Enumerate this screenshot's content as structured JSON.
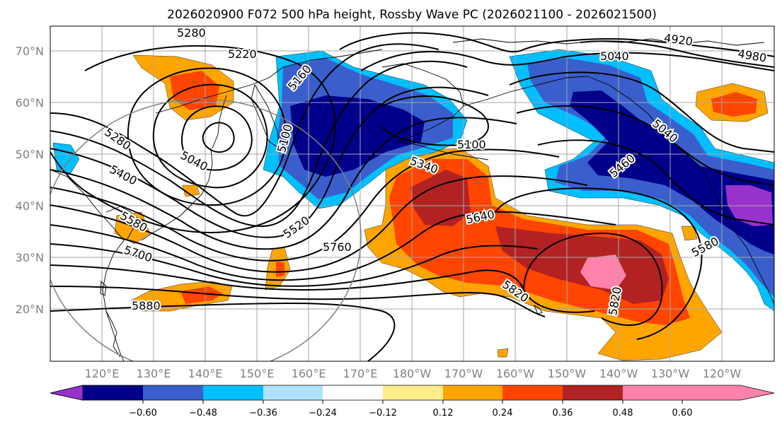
{
  "title": "2026020900 F072 500 hPa height, Rossby Wave PC (2026021100 - 2026021500)",
  "map": {
    "lat_ticks": [
      "70°N",
      "60°N",
      "50°N",
      "40°N",
      "30°N",
      "20°N"
    ],
    "lon_ticks": [
      "120°E",
      "130°E",
      "140°E",
      "150°E",
      "160°E",
      "170°E",
      "180°W",
      "170°W",
      "160°W",
      "150°W",
      "140°W",
      "130°W",
      "120°W"
    ],
    "contour_labels": [
      "5280",
      "5220",
      "5160",
      "5100",
      "5040",
      "5280",
      "5400",
      "5040",
      "5340",
      "5520",
      "5580",
      "5700",
      "5760",
      "5880",
      "5640",
      "5820",
      "5820",
      "5460",
      "5580",
      "5040",
      "4920",
      "4980",
      "5100"
    ]
  },
  "colorbar": {
    "tick_labels": [
      "−0.60",
      "−0.48",
      "−0.36",
      "−0.24",
      "−0.12",
      "0.12",
      "0.24",
      "0.36",
      "0.48",
      "0.60"
    ],
    "colors": [
      "#9932cc",
      "#00008b",
      "#3a5fcd",
      "#00bfff",
      "#b0e2ff",
      "#ffffff",
      "#ffec8b",
      "#ffa500",
      "#ff4500",
      "#b22222",
      "#ff82ab"
    ]
  }
}
